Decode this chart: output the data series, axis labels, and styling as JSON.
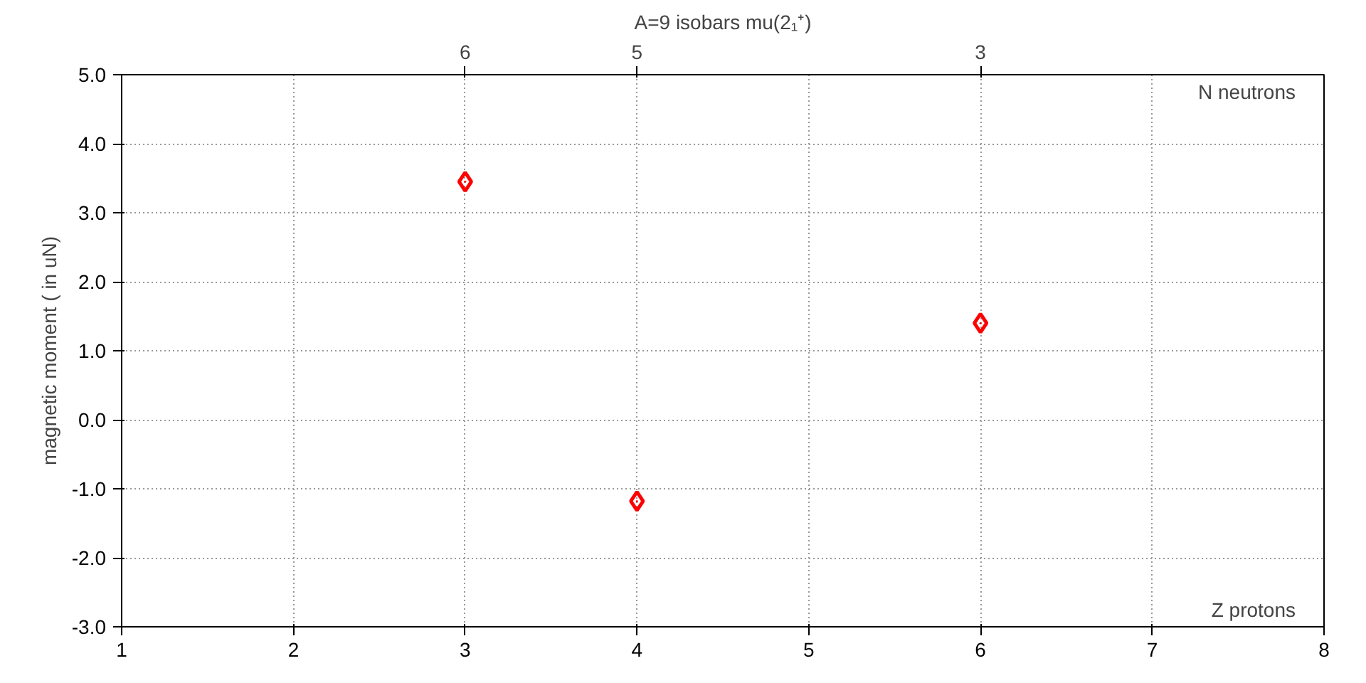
{
  "chart_data": {
    "type": "scatter",
    "title": "A=9 isobars mu(2₁⁺)",
    "xlabel": "Z protons",
    "x2label": "N neutrons",
    "ylabel": "magnetic moment ( in uN)",
    "x": [
      3,
      4,
      6
    ],
    "series": [
      {
        "color": "#ff0000",
        "values": [
          3.45,
          -1.18,
          1.4
        ]
      }
    ],
    "marker": "diamond",
    "grid": true,
    "xlim": [
      1,
      8
    ],
    "xticks": [
      1,
      2,
      3,
      4,
      5,
      6,
      7,
      8
    ],
    "x2lim": [
      8,
      1
    ],
    "x2ticks": [
      6,
      5,
      3
    ],
    "ylim": [
      -3,
      5
    ],
    "yticks": [
      {
        "value": -3,
        "label": "-3.0"
      },
      {
        "value": -2,
        "label": "-2.0"
      },
      {
        "value": -1,
        "label": "-1.0"
      },
      {
        "value": 0,
        "label": "0.0"
      },
      {
        "value": 1,
        "label": "1.0"
      },
      {
        "value": 2,
        "label": "2.0"
      },
      {
        "value": 3,
        "label": "3.0"
      },
      {
        "value": 4,
        "label": "4.0"
      },
      {
        "value": 5,
        "label": "5.0"
      }
    ]
  }
}
